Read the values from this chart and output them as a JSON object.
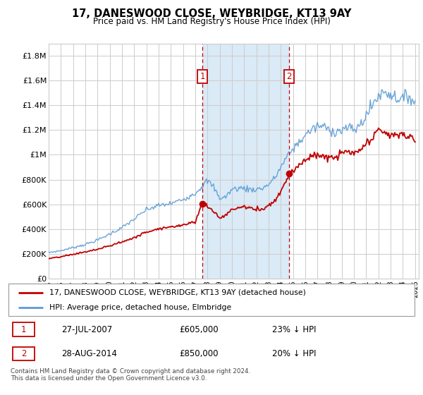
{
  "title": "17, DANESWOOD CLOSE, WEYBRIDGE, KT13 9AY",
  "subtitle": "Price paid vs. HM Land Registry's House Price Index (HPI)",
  "ylim": [
    0,
    1900000
  ],
  "yticks": [
    0,
    200000,
    400000,
    600000,
    800000,
    1000000,
    1200000,
    1400000,
    1600000,
    1800000
  ],
  "ytick_labels": [
    "£0",
    "£200K",
    "£400K",
    "£600K",
    "£800K",
    "£1M",
    "£1.2M",
    "£1.4M",
    "£1.6M",
    "£1.8M"
  ],
  "hpi_color": "#5b9bd5",
  "price_color": "#c00000",
  "marker1_year": 2007.58,
  "marker1_price": 605000,
  "marker1_label": "1",
  "marker2_year": 2014.67,
  "marker2_price": 850000,
  "marker2_label": "2",
  "legend_line1": "17, DANESWOOD CLOSE, WEYBRIDGE, KT13 9AY (detached house)",
  "legend_line2": "HPI: Average price, detached house, Elmbridge",
  "footer": "Contains HM Land Registry data © Crown copyright and database right 2024.\nThis data is licensed under the Open Government Licence v3.0.",
  "grid_color": "#cccccc",
  "bg_color": "#ffffff",
  "shaded_color": "#daeaf6",
  "table_row1_date": "27-JUL-2007",
  "table_row1_price": "£605,000",
  "table_row1_pct": "23% ↓ HPI",
  "table_row2_date": "28-AUG-2014",
  "table_row2_price": "£850,000",
  "table_row2_pct": "20% ↓ HPI",
  "hpi_points": [
    [
      1995,
      210000
    ],
    [
      1996,
      225000
    ],
    [
      1997,
      250000
    ],
    [
      1998,
      275000
    ],
    [
      1999,
      310000
    ],
    [
      2000,
      360000
    ],
    [
      2001,
      410000
    ],
    [
      2002,
      480000
    ],
    [
      2003,
      555000
    ],
    [
      2004,
      590000
    ],
    [
      2005,
      605000
    ],
    [
      2006,
      640000
    ],
    [
      2007,
      690000
    ],
    [
      2007.5,
      740000
    ],
    [
      2008.0,
      790000
    ],
    [
      2008.5,
      740000
    ],
    [
      2009,
      650000
    ],
    [
      2009.5,
      660000
    ],
    [
      2010,
      720000
    ],
    [
      2010.5,
      730000
    ],
    [
      2011,
      730000
    ],
    [
      2011.5,
      720000
    ],
    [
      2012,
      720000
    ],
    [
      2012.5,
      730000
    ],
    [
      2013,
      760000
    ],
    [
      2013.5,
      810000
    ],
    [
      2014,
      900000
    ],
    [
      2014.5,
      980000
    ],
    [
      2015,
      1050000
    ],
    [
      2015.5,
      1100000
    ],
    [
      2016,
      1160000
    ],
    [
      2016.5,
      1200000
    ],
    [
      2017,
      1230000
    ],
    [
      2017.5,
      1230000
    ],
    [
      2018,
      1200000
    ],
    [
      2018.5,
      1190000
    ],
    [
      2019,
      1200000
    ],
    [
      2019.5,
      1220000
    ],
    [
      2020,
      1200000
    ],
    [
      2020.5,
      1240000
    ],
    [
      2021,
      1320000
    ],
    [
      2021.5,
      1400000
    ],
    [
      2022,
      1480000
    ],
    [
      2022.5,
      1510000
    ],
    [
      2023,
      1490000
    ],
    [
      2023.5,
      1460000
    ],
    [
      2024,
      1450000
    ],
    [
      2024.5,
      1480000
    ],
    [
      2025,
      1420000
    ]
  ],
  "price_points": [
    [
      1995,
      160000
    ],
    [
      1996,
      175000
    ],
    [
      1997,
      195000
    ],
    [
      1998,
      215000
    ],
    [
      1999,
      235000
    ],
    [
      2000,
      265000
    ],
    [
      2001,
      295000
    ],
    [
      2002,
      330000
    ],
    [
      2003,
      375000
    ],
    [
      2004,
      405000
    ],
    [
      2005,
      415000
    ],
    [
      2006,
      435000
    ],
    [
      2007.0,
      460000
    ],
    [
      2007.58,
      605000
    ],
    [
      2008.0,
      580000
    ],
    [
      2008.5,
      545000
    ],
    [
      2009,
      490000
    ],
    [
      2009.5,
      510000
    ],
    [
      2010,
      560000
    ],
    [
      2010.5,
      570000
    ],
    [
      2011,
      580000
    ],
    [
      2011.5,
      570000
    ],
    [
      2012,
      555000
    ],
    [
      2012.5,
      565000
    ],
    [
      2013,
      590000
    ],
    [
      2013.5,
      630000
    ],
    [
      2014,
      700000
    ],
    [
      2014.67,
      850000
    ],
    [
      2015,
      870000
    ],
    [
      2015.5,
      920000
    ],
    [
      2016,
      960000
    ],
    [
      2016.5,
      980000
    ],
    [
      2017,
      1000000
    ],
    [
      2017.5,
      990000
    ],
    [
      2018,
      970000
    ],
    [
      2018.5,
      980000
    ],
    [
      2019,
      1010000
    ],
    [
      2019.5,
      1030000
    ],
    [
      2020,
      1000000
    ],
    [
      2020.5,
      1040000
    ],
    [
      2021,
      1080000
    ],
    [
      2021.5,
      1130000
    ],
    [
      2022,
      1200000
    ],
    [
      2022.5,
      1190000
    ],
    [
      2023,
      1150000
    ],
    [
      2023.5,
      1160000
    ],
    [
      2024,
      1170000
    ],
    [
      2024.5,
      1140000
    ],
    [
      2025,
      1130000
    ]
  ]
}
